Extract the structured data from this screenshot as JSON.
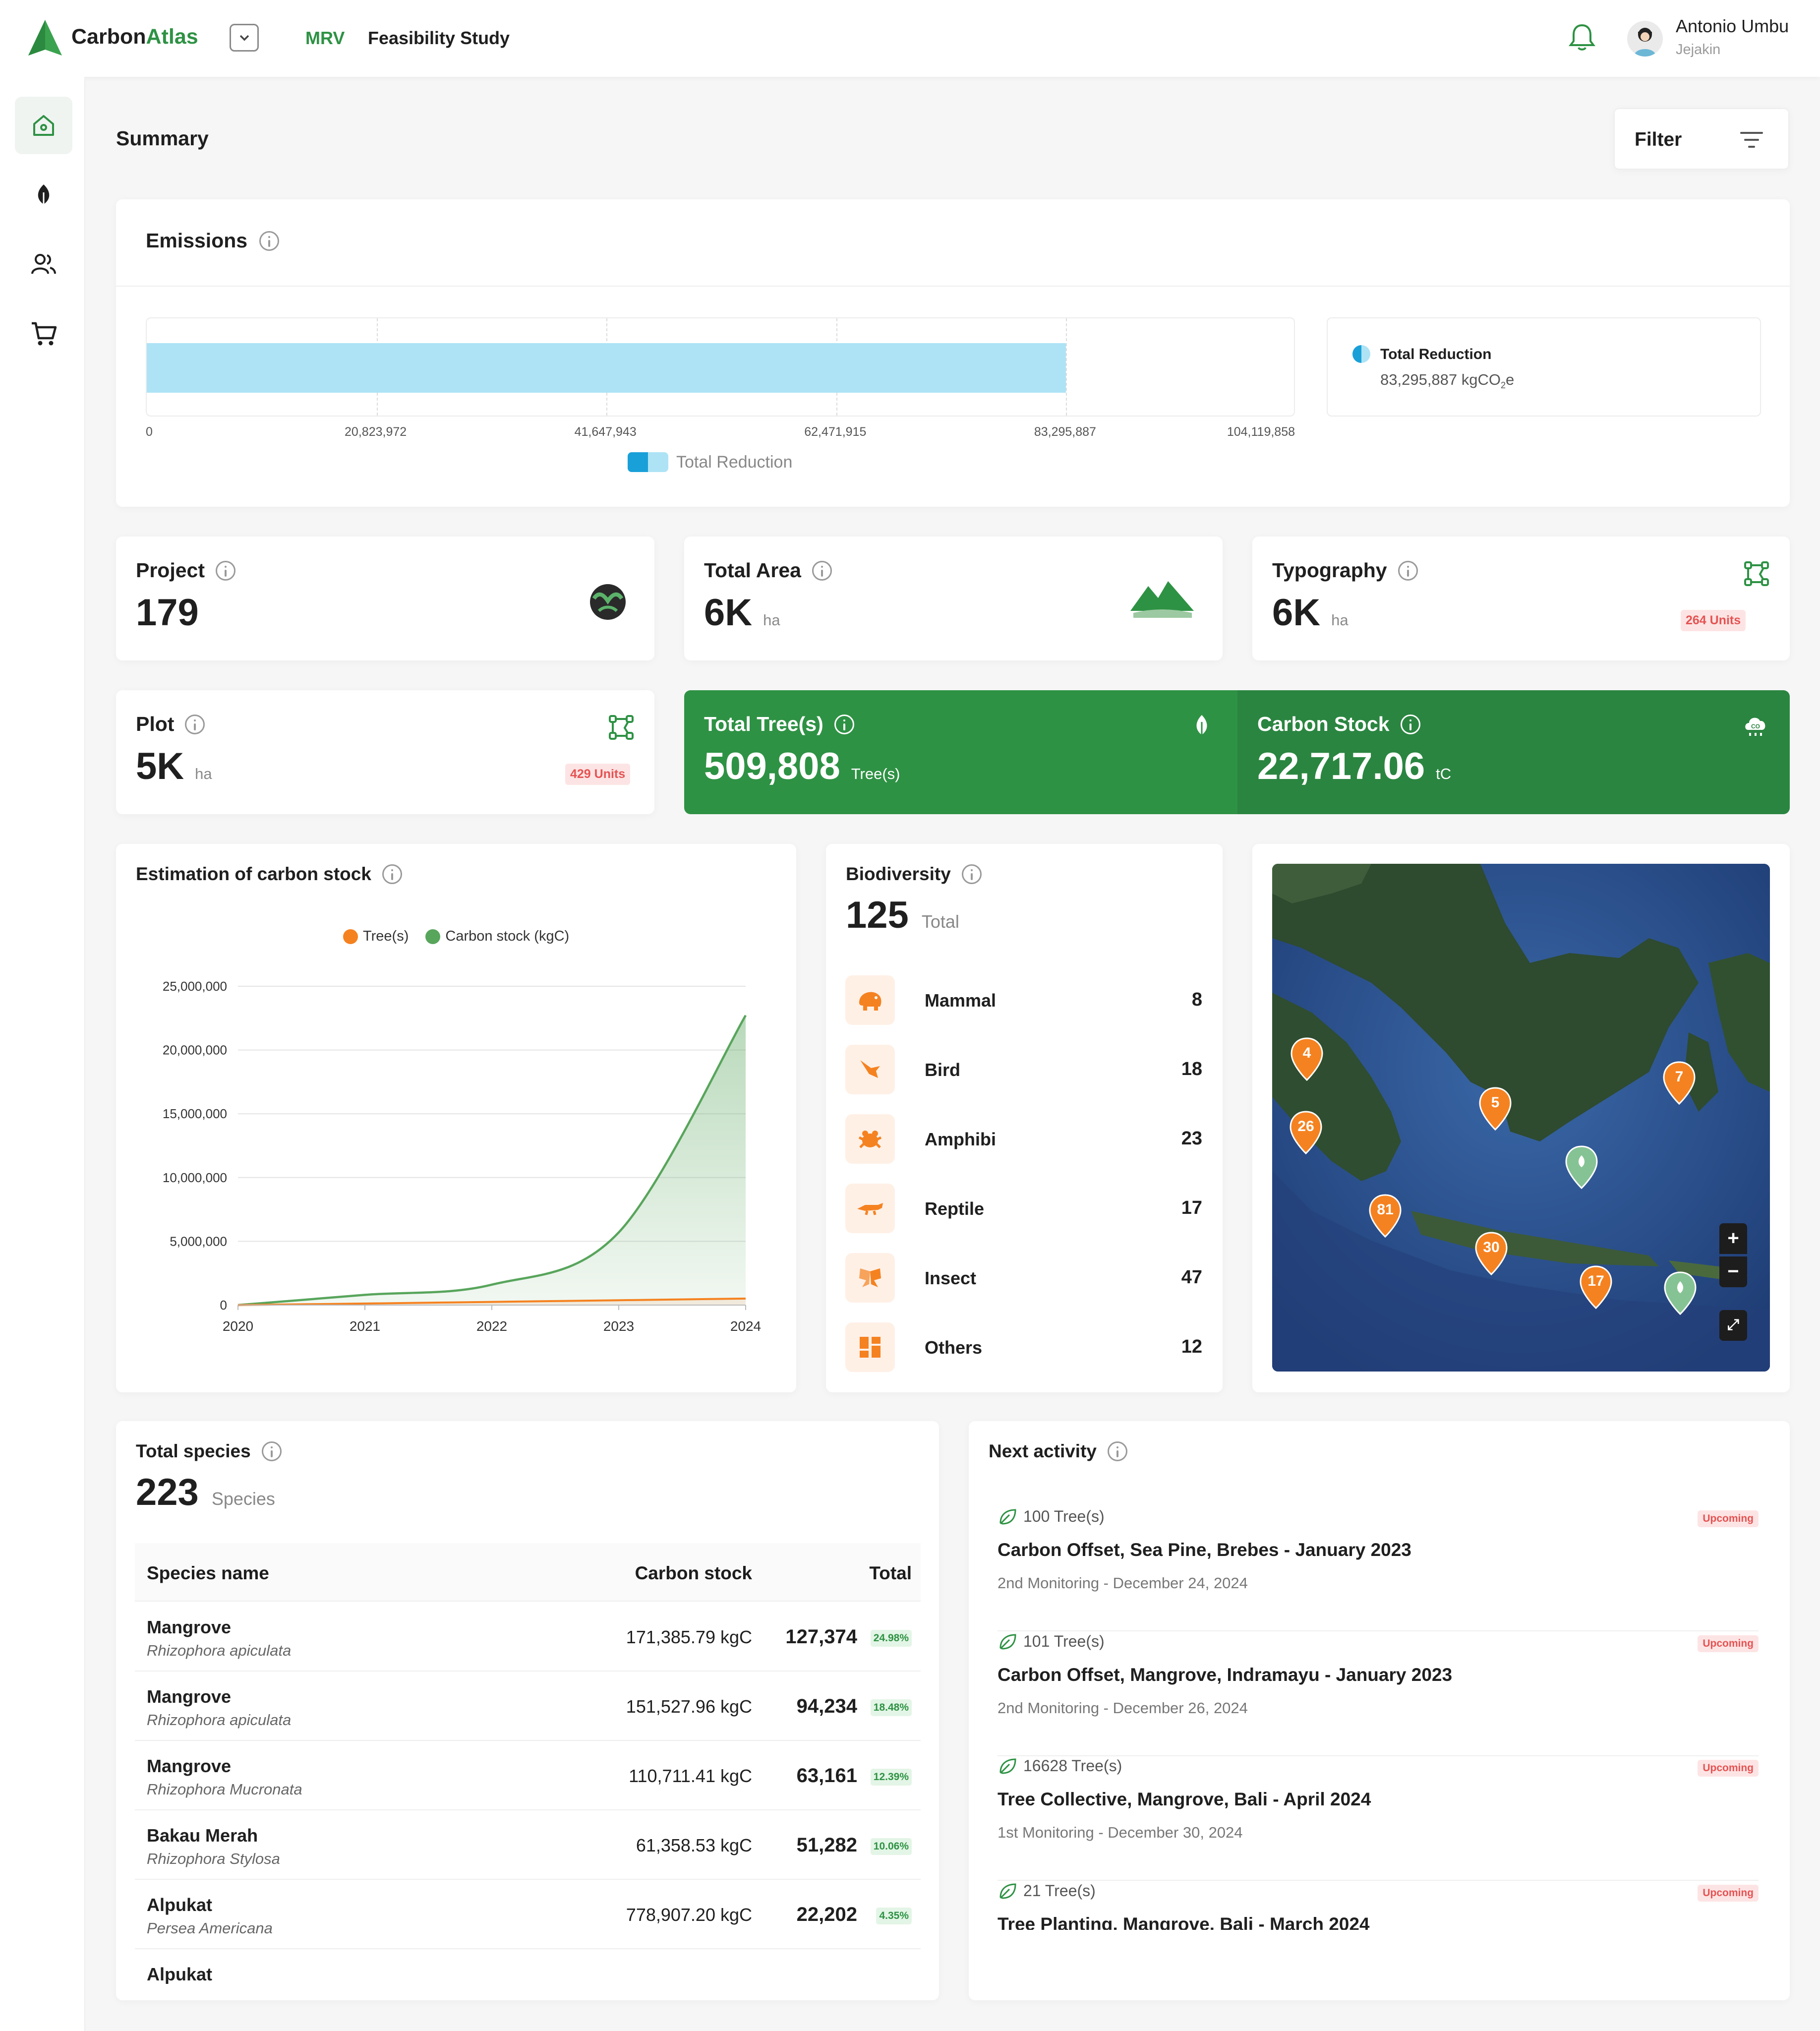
{
  "header": {
    "brand_carbon": "Carbon",
    "brand_atlas": "Atlas",
    "nav_mrv": "MRV",
    "nav_project": "Feasibility Study",
    "user_name": "Antonio Umbu",
    "user_role": "Jejakin"
  },
  "sidebar": {
    "items": [
      {
        "icon": "home-icon",
        "active": true
      },
      {
        "icon": "leaf-icon",
        "active": false
      },
      {
        "icon": "users-icon",
        "active": false
      },
      {
        "icon": "cart-icon",
        "active": false
      }
    ]
  },
  "page": {
    "title": "Summary",
    "filter_label": "Filter"
  },
  "emissions": {
    "title": "Emissions",
    "legend": "Total Reduction",
    "summary_label": "Total Reduction",
    "summary_value": "83,295,887 kgCO",
    "summary_sub": "2",
    "summary_tail": "e"
  },
  "stats": {
    "project": {
      "label": "Project",
      "value": "179"
    },
    "total_area": {
      "label": "Total Area",
      "value": "6K",
      "unit": "ha"
    },
    "typography": {
      "label": "Typography",
      "value": "6K",
      "unit": "ha",
      "badge": "264 Units"
    },
    "plot": {
      "label": "Plot",
      "value": "5K",
      "unit": "ha",
      "badge": "429 Units"
    },
    "total_trees": {
      "label": "Total Tree(s)",
      "value": "509,808",
      "unit": "Tree(s)"
    },
    "carbon_stock": {
      "label": "Carbon Stock",
      "value": "22,717.06",
      "unit": "tC"
    }
  },
  "estimation": {
    "title": "Estimation of carbon stock",
    "legend_trees": "Tree(s)",
    "legend_carbon": "Carbon stock (kgC)"
  },
  "biodiversity": {
    "title": "Biodiversity",
    "total": "125",
    "total_label": "Total",
    "items": [
      {
        "name": "Mammal",
        "value": "8",
        "icon": "elephant-icon"
      },
      {
        "name": "Bird",
        "value": "18",
        "icon": "bird-icon"
      },
      {
        "name": "Amphibi",
        "value": "23",
        "icon": "frog-icon"
      },
      {
        "name": "Reptile",
        "value": "17",
        "icon": "crocodile-icon"
      },
      {
        "name": "Insect",
        "value": "47",
        "icon": "butterfly-icon"
      },
      {
        "name": "Others",
        "value": "12",
        "icon": "grid-icon"
      }
    ]
  },
  "map": {
    "pins": [
      "4",
      "26",
      "5",
      "7",
      "81",
      "30",
      "17"
    ],
    "zoom_in": "+",
    "zoom_out": "−",
    "fullscreen": "⤢"
  },
  "species": {
    "title": "Total species",
    "total": "223",
    "total_label": "Species",
    "columns": [
      "Species name",
      "Carbon stock",
      "Total"
    ],
    "rows": [
      {
        "name": "Mangrove",
        "latin": "Rhizophora apiculata",
        "carbon": "171,385.79 kgC",
        "total": "127,374",
        "pct": "24.98%"
      },
      {
        "name": "Mangrove",
        "latin": "Rhizophora apiculata",
        "carbon": "151,527.96 kgC",
        "total": "94,234",
        "pct": "18.48%"
      },
      {
        "name": "Mangrove",
        "latin": "Rhizophora Mucronata",
        "carbon": "110,711.41 kgC",
        "total": "63,161",
        "pct": "12.39%"
      },
      {
        "name": "Bakau Merah",
        "latin": "Rhizophora Stylosa",
        "carbon": "61,358.53 kgC",
        "total": "51,282",
        "pct": "10.06%"
      },
      {
        "name": "Alpukat",
        "latin": "Persea Americana",
        "carbon": "778,907.20 kgC",
        "total": "22,202",
        "pct": "4.35%"
      },
      {
        "name": "Alpukat",
        "latin": "",
        "carbon": "",
        "total": "",
        "pct": ""
      }
    ]
  },
  "activity": {
    "title": "Next activity",
    "items": [
      {
        "trees": "100 Tree(s)",
        "title": "Carbon Offset, Sea Pine, Brebes - January 2023",
        "sub": "2nd Monitoring - December 24, 2024",
        "status": "Upcoming"
      },
      {
        "trees": "101 Tree(s)",
        "title": "Carbon Offset, Mangrove, Indramayu - January 2023",
        "sub": "2nd Monitoring - December 26, 2024",
        "status": "Upcoming"
      },
      {
        "trees": "16628 Tree(s)",
        "title": "Tree Collective, Mangrove, Bali - April 2024",
        "sub": "1st Monitoring - December 30, 2024",
        "status": "Upcoming"
      },
      {
        "trees": "21 Tree(s)",
        "title": "Tree Planting, Mangrove, Bali - March 2024",
        "sub": "",
        "status": "Upcoming"
      }
    ]
  },
  "chart_data": [
    {
      "type": "bar",
      "orientation": "horizontal",
      "categories": [
        "Total Reduction"
      ],
      "values": [
        83295887
      ],
      "xlim": [
        0,
        104119858
      ],
      "ticks": [
        "0",
        "20,823,972",
        "41,647,943",
        "62,471,915",
        "83,295,887",
        "104,119,858"
      ],
      "legend": [
        "Total Reduction"
      ],
      "colors": {
        "bar": "#aee3f5"
      }
    },
    {
      "type": "area",
      "title": "Estimation of carbon stock",
      "x": [
        "2020",
        "2021",
        "2022",
        "2023",
        "2024"
      ],
      "ylim": [
        0,
        25000000
      ],
      "yticks": [
        "0",
        "5,000,000",
        "10,000,000",
        "15,000,000",
        "20,000,000",
        "25,000,000"
      ],
      "series": [
        {
          "name": "Tree(s)",
          "values": [
            0,
            120000,
            250000,
            380000,
            509808
          ],
          "color": "#f58220"
        },
        {
          "name": "Carbon stock (kgC)",
          "values": [
            0,
            800000,
            1600000,
            5700000,
            22717060
          ],
          "color": "#58a55c"
        }
      ]
    }
  ]
}
